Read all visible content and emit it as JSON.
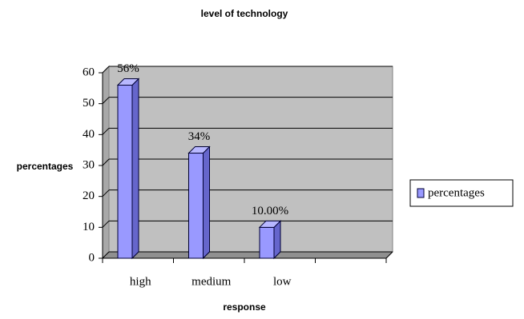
{
  "chart_data": {
    "type": "bar",
    "title": "level of technology",
    "x_label": "response",
    "y_label": "percentages",
    "categories": [
      "high",
      "medium",
      "low",
      null
    ],
    "series": [
      {
        "name": "percentages",
        "color": "#9999ff",
        "values": [
          56,
          34,
          10,
          null
        ],
        "value_labels": [
          "56%",
          "34%",
          "10.00%",
          null
        ]
      }
    ],
    "ylim": [
      0,
      60
    ],
    "yticks": [
      0,
      10,
      20,
      30,
      40,
      50,
      60
    ],
    "grid": true,
    "legend": "right"
  }
}
